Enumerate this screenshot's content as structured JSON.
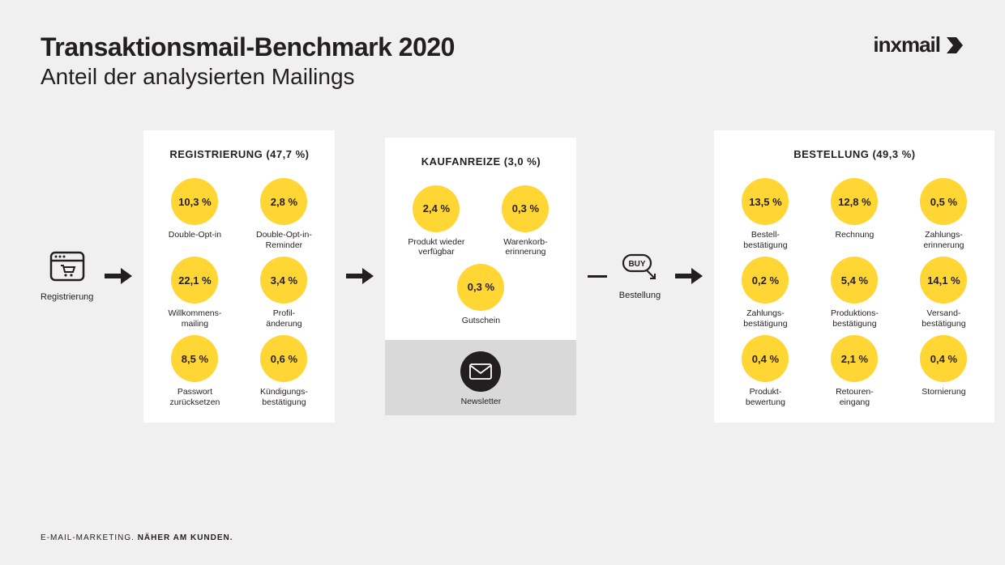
{
  "colors": {
    "accent": "#ffd633",
    "dark": "#231f20",
    "panel_bg": "#ffffff",
    "page_bg": "#f0f0f0",
    "newsletter_bg": "#d9d9d9"
  },
  "typography": {
    "title_fontsize": 32,
    "subtitle_fontsize": 28,
    "panel_title_fontsize": 13,
    "bubble_value_fontsize": 13,
    "item_label_fontsize": 10.5
  },
  "header": {
    "title": "Transaktionsmail-Benchmark 2020",
    "subtitle": "Anteil der analysierten Mailings",
    "logo_text": "inxmail"
  },
  "stage_reg": {
    "label": "Registrierung"
  },
  "stage_buy": {
    "label": "Bestellung"
  },
  "panels": {
    "registrierung": {
      "title": "REGISTRIERUNG (47,7 %)",
      "items": [
        {
          "value": "10,3 %",
          "label": "Double-Opt-in"
        },
        {
          "value": "2,8 %",
          "label": "Double-Opt-in-\nReminder"
        },
        {
          "value": "22,1 %",
          "label": "Willkommens-\nmailing"
        },
        {
          "value": "3,4 %",
          "label": "Profil-\nänderung"
        },
        {
          "value": "8,5 %",
          "label": "Passwort\nzurücksetzen"
        },
        {
          "value": "0,6 %",
          "label": "Kündigungs-\nbestätigung"
        }
      ]
    },
    "kaufanreize": {
      "title": "KAUFANREIZE (3,0 %)",
      "items": [
        {
          "value": "2,4 %",
          "label": "Produkt wieder\nverfügbar"
        },
        {
          "value": "0,3 %",
          "label": "Warenkorb-\nerinnerung"
        },
        {
          "value": "0,3 %",
          "label": "Gutschein"
        }
      ],
      "newsletter_label": "Newsletter"
    },
    "bestellung": {
      "title": "BESTELLUNG (49,3 %)",
      "items": [
        {
          "value": "13,5 %",
          "label": "Bestell-\nbestätigung"
        },
        {
          "value": "12,8 %",
          "label": "Rechnung"
        },
        {
          "value": "0,5 %",
          "label": "Zahlungs-\nerinnerung"
        },
        {
          "value": "0,2 %",
          "label": "Zahlungs-\nbestätigung"
        },
        {
          "value": "5,4 %",
          "label": "Produktions-\nbestätigung"
        },
        {
          "value": "14,1 %",
          "label": "Versand-\nbestätigung"
        },
        {
          "value": "0,4 %",
          "label": "Produkt-\nbewertung"
        },
        {
          "value": "2,1 %",
          "label": "Retouren-\neingang"
        },
        {
          "value": "0,4 %",
          "label": "Stornierung"
        }
      ]
    }
  },
  "footer": {
    "light": "E-MAIL-MARKETING.",
    "bold": "NÄHER AM KUNDEN."
  },
  "layout": {
    "bubble_diameter": 58,
    "panel_gap": 14
  }
}
